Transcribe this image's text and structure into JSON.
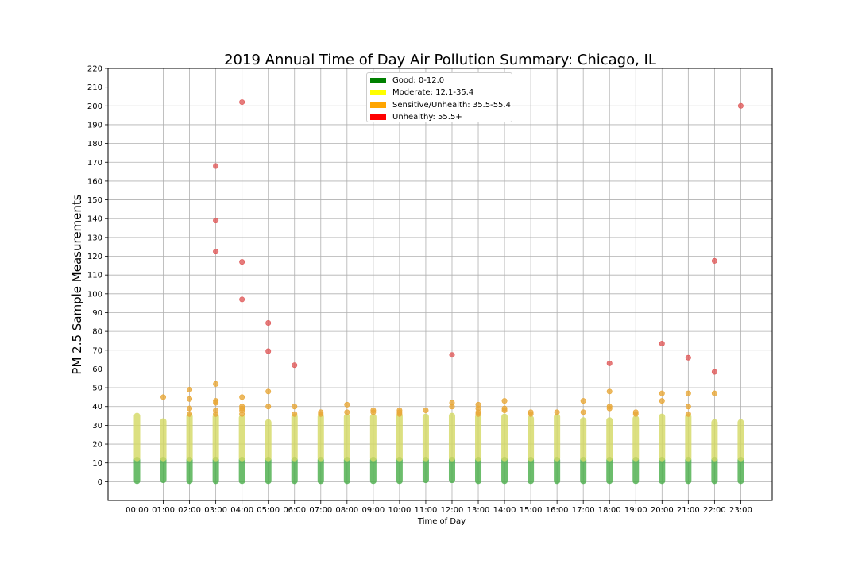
{
  "chart_data": {
    "type": "scatter",
    "title": "2019 Annual Time of Day Air Pollution Summary: Chicago, IL",
    "xlabel": "Time of Day",
    "ylabel": "PM 2.5 Sample Measurements",
    "categories": [
      "00:00",
      "01:00",
      "02:00",
      "03:00",
      "04:00",
      "05:00",
      "06:00",
      "07:00",
      "08:00",
      "09:00",
      "10:00",
      "11:00",
      "12:00",
      "13:00",
      "14:00",
      "15:00",
      "16:00",
      "17:00",
      "18:00",
      "19:00",
      "20:00",
      "21:00",
      "22:00",
      "23:00"
    ],
    "yticks": [
      0,
      10,
      20,
      30,
      40,
      50,
      60,
      70,
      80,
      90,
      100,
      110,
      120,
      130,
      140,
      150,
      160,
      170,
      180,
      190,
      200,
      210,
      220
    ],
    "ylim": [
      -10,
      220
    ],
    "grid": true,
    "legend": {
      "placement": "upper center",
      "entries": [
        {
          "label": "Good: 0-12.0",
          "color": "#008000"
        },
        {
          "label": "Moderate: 12.1-35.4",
          "color": "#ffff00"
        },
        {
          "label": "Sensitive/Unhealth: 35.5-55.4",
          "color": "#ffa500"
        },
        {
          "label": "Unhealthy: 55.5+",
          "color": "#ff0000"
        }
      ]
    },
    "categories_thresholds": {
      "good": [
        0,
        12.0
      ],
      "moderate": [
        12.1,
        35.4
      ],
      "sensitive": [
        35.5,
        55.4
      ],
      "unhealthy": [
        55.5,
        220
      ]
    },
    "series": [
      {
        "category": "good",
        "color": "#4cae4c",
        "ranges": [
          [
            0,
            12
          ],
          [
            0.5,
            12
          ],
          [
            0,
            12
          ],
          [
            0,
            12
          ],
          [
            0,
            12
          ],
          [
            0,
            12
          ],
          [
            0,
            12
          ],
          [
            0,
            12
          ],
          [
            0,
            12
          ],
          [
            0,
            12
          ],
          [
            0,
            12
          ],
          [
            0.5,
            12
          ],
          [
            0.5,
            12
          ],
          [
            0,
            12
          ],
          [
            0,
            12
          ],
          [
            0,
            12
          ],
          [
            0,
            12
          ],
          [
            0,
            12
          ],
          [
            0,
            12
          ],
          [
            0,
            12
          ],
          [
            0,
            12
          ],
          [
            0,
            12
          ],
          [
            0,
            12
          ],
          [
            0,
            12
          ]
        ]
      },
      {
        "category": "moderate",
        "color": "#d4d965",
        "ranges": [
          [
            12.1,
            35.4
          ],
          [
            12.1,
            32.5
          ],
          [
            12.1,
            35.2
          ],
          [
            12.1,
            35
          ],
          [
            12.1,
            34.5
          ],
          [
            12.1,
            32
          ],
          [
            12.1,
            35
          ],
          [
            12.1,
            35
          ],
          [
            12.1,
            35
          ],
          [
            12.1,
            35
          ],
          [
            12.1,
            35.4
          ],
          [
            12.1,
            35
          ],
          [
            12.1,
            35.4
          ],
          [
            12.1,
            35
          ],
          [
            12.1,
            35
          ],
          [
            12.1,
            34
          ],
          [
            12.1,
            35
          ],
          [
            12.1,
            33
          ],
          [
            12.1,
            33
          ],
          [
            12.1,
            34
          ],
          [
            12.1,
            35
          ],
          [
            12.1,
            35
          ],
          [
            12.1,
            32
          ],
          [
            12.1,
            32
          ]
        ]
      },
      {
        "category": "sensitive",
        "color": "#e8a838",
        "points": [
          [
            1,
            45
          ],
          [
            2,
            49
          ],
          [
            2,
            44
          ],
          [
            2,
            39
          ],
          [
            2,
            36
          ],
          [
            3,
            52
          ],
          [
            3,
            43
          ],
          [
            3,
            42
          ],
          [
            3,
            38
          ],
          [
            3,
            36
          ],
          [
            4,
            45
          ],
          [
            4,
            40
          ],
          [
            4,
            39
          ],
          [
            4,
            38
          ],
          [
            4,
            36
          ],
          [
            5,
            48
          ],
          [
            5,
            40
          ],
          [
            6,
            40
          ],
          [
            6,
            36
          ],
          [
            7,
            37
          ],
          [
            7,
            36
          ],
          [
            8,
            41
          ],
          [
            8,
            37
          ],
          [
            9,
            38
          ],
          [
            9,
            37
          ],
          [
            10,
            38
          ],
          [
            10,
            37
          ],
          [
            10,
            36
          ],
          [
            11,
            38
          ],
          [
            12,
            42
          ],
          [
            12,
            40
          ],
          [
            13,
            41
          ],
          [
            13,
            39
          ],
          [
            13,
            37
          ],
          [
            13,
            36
          ],
          [
            14,
            43
          ],
          [
            14,
            39
          ],
          [
            14,
            38
          ],
          [
            15,
            37
          ],
          [
            15,
            36
          ],
          [
            16,
            37
          ],
          [
            17,
            43
          ],
          [
            17,
            37
          ],
          [
            18,
            48
          ],
          [
            18,
            40
          ],
          [
            18,
            39
          ],
          [
            19,
            37
          ],
          [
            19,
            36
          ],
          [
            20,
            47
          ],
          [
            20,
            43
          ],
          [
            21,
            47
          ],
          [
            21,
            40
          ],
          [
            21,
            36
          ],
          [
            22,
            47
          ]
        ]
      },
      {
        "category": "unhealthy",
        "color": "#e05a5a",
        "points": [
          [
            3,
            168
          ],
          [
            3,
            139
          ],
          [
            3,
            122.5
          ],
          [
            4,
            202
          ],
          [
            4,
            117
          ],
          [
            4,
            97
          ],
          [
            5,
            84.5
          ],
          [
            5,
            69.5
          ],
          [
            6,
            62
          ],
          [
            12,
            67.5
          ],
          [
            18,
            63
          ],
          [
            20,
            73.5
          ],
          [
            21,
            66
          ],
          [
            22,
            117.5
          ],
          [
            22,
            58.5
          ],
          [
            23,
            200
          ]
        ]
      }
    ]
  }
}
